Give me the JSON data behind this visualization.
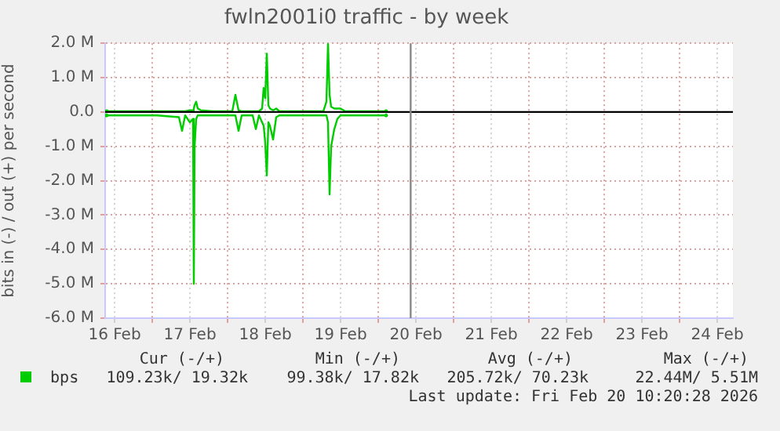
{
  "chart_data": {
    "type": "line",
    "title": "fwln2001i0 traffic - by week",
    "ylabel": "bits in (-) / out (+) per second",
    "x": [
      "2026-02-16T09:30",
      "2026-02-16T17:30",
      "2026-02-17T01:30",
      "2026-02-17T08:30",
      "2026-02-17T09:30",
      "2026-02-17T10:30",
      "2026-02-17T12:00",
      "2026-02-17T13:00",
      "2026-02-17T13:15",
      "2026-02-17T13:30",
      "2026-02-17T14:00",
      "2026-02-17T14:30",
      "2026-02-17T15:30",
      "2026-02-17T19:00",
      "2026-02-18T01:30",
      "2026-02-18T02:30",
      "2026-02-18T03:30",
      "2026-02-18T04:30",
      "2026-02-18T08:00",
      "2026-02-18T09:00",
      "2026-02-18T10:00",
      "2026-02-18T11:00",
      "2026-02-18T11:30",
      "2026-02-18T12:00",
      "2026-02-18T12:30",
      "2026-02-18T13:00",
      "2026-02-18T13:30",
      "2026-02-18T14:30",
      "2026-02-18T15:30",
      "2026-02-18T16:30",
      "2026-02-18T22:30",
      "2026-02-19T06:30",
      "2026-02-19T07:30",
      "2026-02-19T08:00",
      "2026-02-19T08:30",
      "2026-02-19T09:00",
      "2026-02-19T10:00",
      "2026-02-19T11:00",
      "2026-02-19T12:00",
      "2026-02-19T13:30",
      "2026-02-20T02:30"
    ],
    "series": [
      {
        "name": "bps",
        "color": "#00cc00",
        "values": [
          0.02,
          0.02,
          0.02,
          0.02,
          0.02,
          0.02,
          0.05,
          0.05,
          0.1,
          0.2,
          0.3,
          0.1,
          0.05,
          0.02,
          0.02,
          0.5,
          0.05,
          0.02,
          0.02,
          0.02,
          0.02,
          0.1,
          0.7,
          0.4,
          1.7,
          0.2,
          0.1,
          0.05,
          0.1,
          0.02,
          0.02,
          0.02,
          0.3,
          2.0,
          0.5,
          0.15,
          0.1,
          0.1,
          0.1,
          0.02,
          0.02
        ]
      },
      {
        "color": "#00cc00",
        "values": [
          -0.1,
          -0.1,
          -0.1,
          -0.15,
          -0.55,
          -0.1,
          -0.3,
          -0.2,
          -5.0,
          -1.0,
          -0.2,
          -0.1,
          -0.1,
          -0.1,
          -0.1,
          -0.1,
          -0.55,
          -0.1,
          -0.1,
          -0.5,
          -0.1,
          -0.3,
          -0.4,
          -0.9,
          -1.85,
          -0.3,
          -0.4,
          -0.8,
          -0.15,
          -0.1,
          -0.1,
          -0.1,
          -0.1,
          -0.3,
          -2.4,
          -1.0,
          -0.5,
          -0.2,
          -0.1,
          -0.1,
          -0.1
        ]
      }
    ],
    "xlim": [
      "2026-02-16T09:00",
      "2026-02-24T17:00"
    ],
    "xticks": [
      {
        "value": "2026-02-16T12:00",
        "label": "16 Feb"
      },
      {
        "value": "2026-02-17T00:00",
        "label": null
      },
      {
        "value": "2026-02-17T12:00",
        "label": "17 Feb"
      },
      {
        "value": "2026-02-18T00:00",
        "label": null
      },
      {
        "value": "2026-02-18T12:00",
        "label": "18 Feb"
      },
      {
        "value": "2026-02-19T00:00",
        "label": null
      },
      {
        "value": "2026-02-19T12:00",
        "label": "19 Feb"
      },
      {
        "value": "2026-02-20T00:00",
        "label": null
      },
      {
        "value": "2026-02-20T12:00",
        "label": "20 Feb"
      },
      {
        "value": "2026-02-21T00:00",
        "label": null
      },
      {
        "value": "2026-02-21T12:00",
        "label": "21 Feb"
      },
      {
        "value": "2026-02-22T00:00",
        "label": null
      },
      {
        "value": "2026-02-22T12:00",
        "label": "22 Feb"
      },
      {
        "value": "2026-02-23T00:00",
        "label": null
      },
      {
        "value": "2026-02-23T12:00",
        "label": "23 Feb"
      },
      {
        "value": "2026-02-24T00:00",
        "label": null
      },
      {
        "value": "2026-02-24T12:00",
        "label": "24 Feb"
      }
    ],
    "ylim": [
      -6,
      2
    ],
    "yticks": [
      {
        "value": 2,
        "label": "2.0 M"
      },
      {
        "value": 1,
        "label": "1.0 M"
      },
      {
        "value": 0,
        "label": "0.0"
      },
      {
        "value": -1,
        "label": "-1.0 M"
      },
      {
        "value": -2,
        "label": "-2.0 M"
      },
      {
        "value": -3,
        "label": "-3.0 M"
      },
      {
        "value": -4,
        "label": "-4.0 M"
      },
      {
        "value": -5,
        "label": "-5.0 M"
      },
      {
        "value": -6,
        "label": "-6.0 M"
      }
    ],
    "ref_lines": [
      {
        "axis": "y",
        "value": 0,
        "color": "#000000"
      },
      {
        "axis": "x",
        "value": "2026-02-20T10:20",
        "color": "#888888"
      }
    ],
    "grid": true,
    "legend": "bottom",
    "marker": "none",
    "line_style": "solid",
    "annotations": [
      "Cur (-/+)",
      "Min (-/+)",
      "Avg (-/+)",
      "Max (-/+)",
      "109.23k/ 19.32k",
      "99.38k/ 17.82k",
      "205.72k/ 70.23k",
      "22.44M/ 5.51M",
      "Last update: Fri Feb 20 10:20:28 2026"
    ]
  }
}
